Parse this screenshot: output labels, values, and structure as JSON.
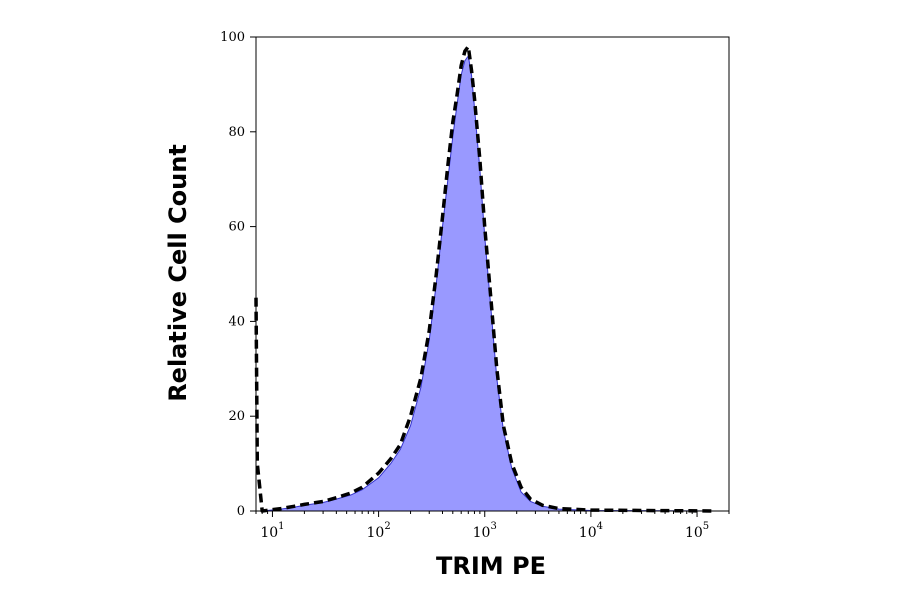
{
  "chart_data": {
    "type": "area",
    "xlabel": "TRIM PE",
    "ylabel": "Relative Cell Count",
    "x_scale": "log",
    "xlim": [
      7,
      200000
    ],
    "ylim": [
      0,
      100
    ],
    "x_ticks": [
      {
        "base": "10",
        "exp": "1",
        "value": 10
      },
      {
        "base": "10",
        "exp": "2",
        "value": 100
      },
      {
        "base": "10",
        "exp": "3",
        "value": 1000
      },
      {
        "base": "10",
        "exp": "4",
        "value": 10000
      },
      {
        "base": "10",
        "exp": "5",
        "value": 100000
      }
    ],
    "y_ticks": [
      "0",
      "20",
      "40",
      "60",
      "80",
      "100"
    ],
    "grid": false,
    "legend": "none",
    "series": [
      {
        "style": "filled",
        "color": "#9999ff",
        "edge_color": "#3333cc",
        "points": [
          [
            8,
            0
          ],
          [
            12,
            0.4
          ],
          [
            16,
            0.8
          ],
          [
            20,
            1.2
          ],
          [
            30,
            1.8
          ],
          [
            40,
            2.5
          ],
          [
            55,
            3.4
          ],
          [
            70,
            4.5
          ],
          [
            100,
            7
          ],
          [
            130,
            10
          ],
          [
            160,
            13
          ],
          [
            200,
            18
          ],
          [
            250,
            26
          ],
          [
            300,
            36
          ],
          [
            350,
            48
          ],
          [
            400,
            60
          ],
          [
            450,
            70
          ],
          [
            500,
            79
          ],
          [
            550,
            86
          ],
          [
            600,
            92
          ],
          [
            650,
            95
          ],
          [
            700,
            96
          ],
          [
            750,
            92
          ],
          [
            800,
            85
          ],
          [
            900,
            72
          ],
          [
            1000,
            58
          ],
          [
            1150,
            42
          ],
          [
            1300,
            28
          ],
          [
            1500,
            17
          ],
          [
            1800,
            9
          ],
          [
            2200,
            4
          ],
          [
            2700,
            2
          ],
          [
            3500,
            1
          ],
          [
            5000,
            0.4
          ],
          [
            10000,
            0.1
          ],
          [
            150000,
            0
          ]
        ]
      },
      {
        "style": "dashed",
        "color": "#000000",
        "points": [
          [
            7,
            45
          ],
          [
            7.2,
            10
          ],
          [
            8,
            0
          ],
          [
            12,
            0.5
          ],
          [
            16,
            1
          ],
          [
            20,
            1.4
          ],
          [
            30,
            2
          ],
          [
            40,
            2.8
          ],
          [
            55,
            3.8
          ],
          [
            70,
            5
          ],
          [
            100,
            8
          ],
          [
            130,
            11
          ],
          [
            160,
            14
          ],
          [
            200,
            20
          ],
          [
            250,
            28
          ],
          [
            300,
            38
          ],
          [
            350,
            50
          ],
          [
            400,
            62
          ],
          [
            450,
            73
          ],
          [
            500,
            82
          ],
          [
            550,
            88
          ],
          [
            600,
            94
          ],
          [
            650,
            97
          ],
          [
            700,
            98
          ],
          [
            750,
            93
          ],
          [
            800,
            87
          ],
          [
            900,
            74
          ],
          [
            1000,
            60
          ],
          [
            1150,
            44
          ],
          [
            1300,
            30
          ],
          [
            1500,
            18
          ],
          [
            1800,
            10
          ],
          [
            2200,
            5
          ],
          [
            2700,
            2.5
          ],
          [
            3500,
            1.2
          ],
          [
            5000,
            0.5
          ],
          [
            10000,
            0.2
          ],
          [
            150000,
            0
          ]
        ]
      }
    ]
  }
}
